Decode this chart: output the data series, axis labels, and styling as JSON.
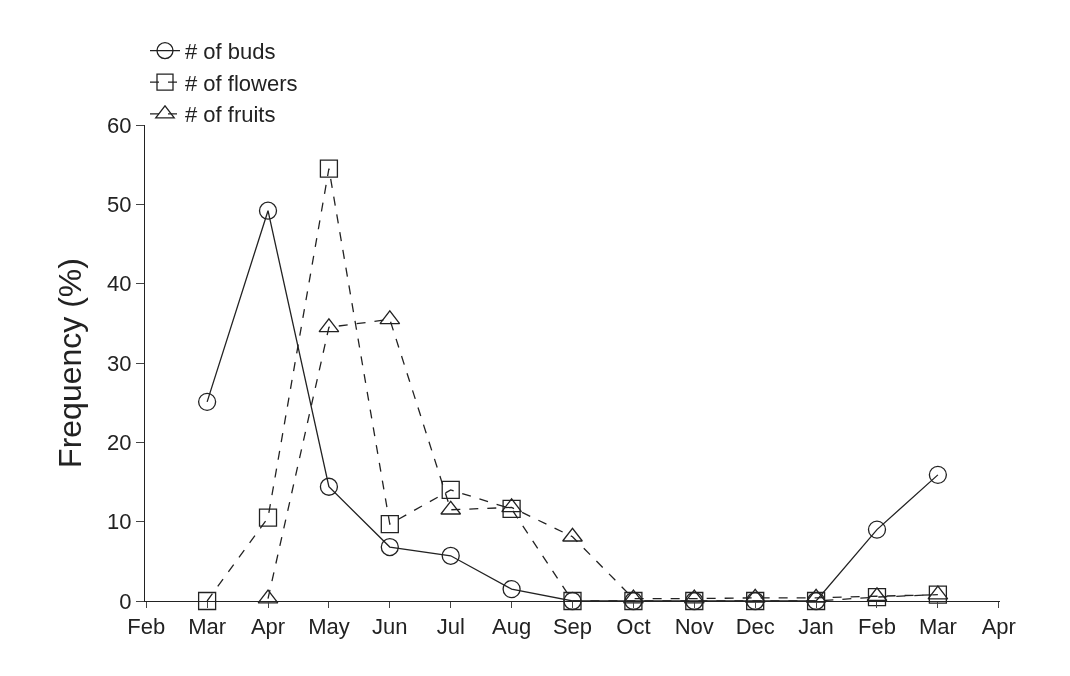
{
  "chart_data": {
    "type": "line",
    "ylabel": "Frequency (%)",
    "categories": [
      "Feb",
      "Mar",
      "Apr",
      "May",
      "Jun",
      "Jul",
      "Aug",
      "Sep",
      "Oct",
      "Nov",
      "Dec",
      "Jan",
      "Feb",
      "Mar",
      "Apr"
    ],
    "series": [
      {
        "name": "# of buds",
        "color": "#222222",
        "marker": "circle",
        "line_style": "solid",
        "values": [
          null,
          25.1,
          49.2,
          14.4,
          6.8,
          5.7,
          1.5,
          0,
          0,
          0,
          0,
          0,
          9,
          15.9,
          null
        ]
      },
      {
        "name": "# of flowers",
        "color": "#222222",
        "marker": "square",
        "line_style": "dashed",
        "values": [
          null,
          0,
          10.5,
          54.5,
          9.7,
          14,
          11.6,
          0,
          0,
          0,
          0,
          0,
          0.5,
          0.8,
          null
        ]
      },
      {
        "name": "# of fruits",
        "color": "#222222",
        "marker": "triangle",
        "line_style": "dashed",
        "values": [
          null,
          null,
          0.3,
          34.5,
          35.5,
          11.5,
          11.8,
          8.1,
          0.3,
          0.3,
          0.4,
          0.4,
          0.6,
          0.8,
          null
        ]
      }
    ],
    "ylim": [
      0,
      60
    ],
    "yticks": [
      0,
      10,
      20,
      30,
      40,
      50,
      60
    ],
    "legend": "top left"
  }
}
